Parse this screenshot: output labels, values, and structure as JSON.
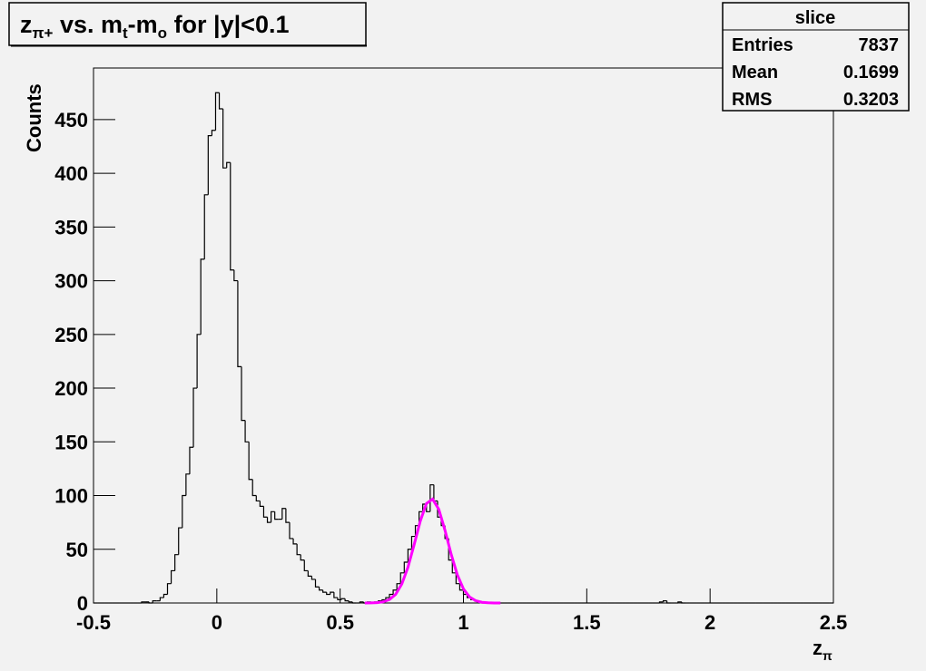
{
  "chart_data": {
    "type": "histogram",
    "title": [
      "z",
      "π+",
      " vs. m",
      "t",
      "-m",
      "o",
      " for |y|<0.1"
    ],
    "xlabel": [
      "z",
      "π"
    ],
    "ylabel": "Counts",
    "color": "#000000",
    "bins": [
      -0.5,
      -0.485,
      -0.47,
      -0.455,
      -0.44,
      -0.425,
      -0.41,
      -0.395,
      -0.38,
      -0.365,
      -0.35,
      -0.335,
      -0.32,
      -0.305,
      -0.29,
      -0.275,
      -0.26,
      -0.245,
      -0.23,
      -0.215,
      -0.2,
      -0.185,
      -0.17,
      -0.155,
      -0.14,
      -0.125,
      -0.11,
      -0.095,
      -0.08,
      -0.065,
      -0.05,
      -0.035,
      -0.02,
      -0.005,
      0.01,
      0.025,
      0.04,
      0.055,
      0.07,
      0.085,
      0.1,
      0.115,
      0.13,
      0.145,
      0.16,
      0.175,
      0.19,
      0.205,
      0.22,
      0.235,
      0.25,
      0.265,
      0.28,
      0.295,
      0.31,
      0.325,
      0.34,
      0.355,
      0.37,
      0.385,
      0.4,
      0.415,
      0.43,
      0.445,
      0.46,
      0.475,
      0.49,
      0.505,
      0.52,
      0.535,
      0.55,
      0.565,
      0.58,
      0.595,
      0.61,
      0.625,
      0.64,
      0.655,
      0.67,
      0.685,
      0.7,
      0.715,
      0.73,
      0.745,
      0.76,
      0.775,
      0.79,
      0.805,
      0.82,
      0.835,
      0.85,
      0.865,
      0.88,
      0.895,
      0.91,
      0.925,
      0.94,
      0.955,
      0.97,
      0.985,
      1,
      1.015,
      1.03,
      1.045,
      1.06,
      1.075,
      1.09,
      1.105,
      1.12,
      1.135,
      1.15,
      1.165,
      1.18,
      1.195,
      1.21,
      1.225,
      1.24,
      1.255,
      1.27,
      1.285,
      1.3,
      1.315,
      1.33,
      1.345,
      1.36,
      1.375,
      1.39,
      1.405,
      1.42,
      1.435,
      1.45,
      1.465,
      1.48,
      1.495,
      1.51,
      1.525,
      1.54,
      1.555,
      1.57,
      1.585,
      1.6,
      1.615,
      1.63,
      1.645,
      1.66,
      1.675,
      1.69,
      1.705,
      1.72,
      1.735,
      1.75,
      1.765,
      1.78,
      1.795,
      1.81,
      1.825,
      1.84,
      1.855,
      1.87,
      1.885,
      1.9,
      1.915,
      1.93,
      1.945,
      1.96,
      1.975,
      1.99,
      2.005,
      2.02,
      2.035,
      2.05,
      2.065,
      2.08,
      2.095,
      2.11,
      2.125,
      2.14,
      2.155,
      2.17,
      2.185,
      2.2,
      2.215,
      2.23,
      2.245,
      2.26,
      2.275,
      2.29,
      2.305,
      2.32,
      2.335,
      2.35,
      2.365,
      2.38,
      2.395,
      2.41,
      2.425,
      2.44,
      2.455,
      2.47,
      2.485,
      2.5
    ],
    "values": [
      0,
      0,
      0,
      0,
      0,
      0,
      0,
      0,
      0,
      0,
      0,
      0,
      0,
      1,
      1,
      0,
      2,
      2,
      5,
      8,
      18,
      30,
      45,
      70,
      100,
      120,
      145,
      200,
      250,
      320,
      380,
      435,
      440,
      475,
      460,
      405,
      410,
      310,
      300,
      220,
      170,
      150,
      115,
      100,
      95,
      90,
      80,
      75,
      85,
      78,
      78,
      88,
      75,
      60,
      55,
      45,
      40,
      30,
      25,
      22,
      15,
      12,
      10,
      8,
      10,
      5,
      3,
      4,
      2,
      1,
      0,
      0,
      1,
      0,
      1,
      0,
      1,
      2,
      3,
      5,
      8,
      12,
      18,
      28,
      38,
      50,
      62,
      72,
      85,
      92,
      85,
      110,
      95,
      80,
      72,
      60,
      40,
      28,
      18,
      12,
      8,
      5,
      3,
      2,
      1,
      0,
      0,
      0,
      0,
      0,
      0,
      0,
      0,
      0,
      0,
      0,
      0,
      0,
      0,
      0,
      0,
      0,
      0,
      0,
      0,
      0,
      0,
      0,
      0,
      0,
      0,
      0,
      0,
      0,
      0,
      0,
      0,
      0,
      0,
      0,
      0,
      0,
      0,
      0,
      0,
      0,
      0,
      0,
      0,
      0,
      0,
      0,
      0,
      1,
      2,
      0,
      0,
      0,
      1,
      0,
      0,
      0,
      0,
      0,
      0,
      0,
      0,
      0,
      0,
      0,
      0,
      0,
      0,
      0,
      0,
      0,
      0,
      0,
      0,
      0,
      0,
      0,
      0,
      0,
      0,
      0,
      0,
      0,
      0,
      0,
      0,
      0,
      0,
      0,
      0,
      0,
      0,
      0,
      0,
      0
    ],
    "fit": {
      "color": "#ff00ff",
      "x": [
        0.6,
        0.625,
        0.65,
        0.675,
        0.7,
        0.725,
        0.75,
        0.775,
        0.8,
        0.825,
        0.85,
        0.875,
        0.9,
        0.925,
        0.95,
        0.975,
        1.0,
        1.025,
        1.05,
        1.075,
        1.1,
        1.125,
        1.15
      ],
      "values": [
        0.02,
        0.08,
        0.32,
        1.08,
        3.2,
        8.0,
        17.6,
        33.3,
        54.3,
        76.3,
        92.6,
        96.7,
        87.2,
        67.8,
        45.5,
        26.3,
        13.1,
        5.6,
        2.1,
        0.67,
        0.19,
        0.04,
        0.01
      ]
    },
    "xlim": [
      -0.5,
      2.5
    ],
    "xticks": [
      -0.5,
      0,
      0.5,
      1,
      1.5,
      2,
      2.5
    ],
    "ylim": [
      0,
      498
    ],
    "yticks": [
      0,
      50,
      100,
      150,
      200,
      250,
      300,
      350,
      400,
      450
    ],
    "stats": {
      "title": "slice",
      "rows": [
        [
          "Entries",
          7837
        ],
        [
          "Mean",
          0.1699
        ],
        [
          "RMS",
          0.3203
        ]
      ]
    }
  }
}
